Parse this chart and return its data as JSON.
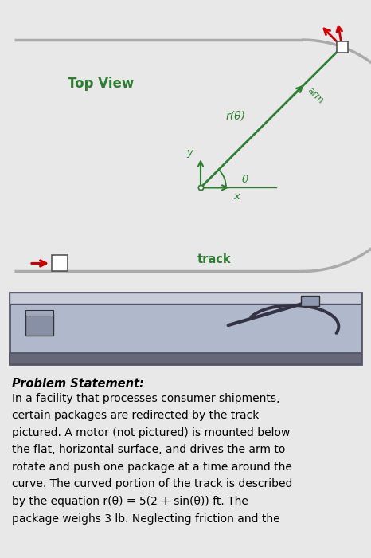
{
  "bg_color": "#e8e8e8",
  "top_panel_bg": "#ffffff",
  "track_color": "#aaaaaa",
  "track_linewidth": 2.5,
  "arm_color": "#2e7d32",
  "arrow_red": "#cc0000",
  "label_color": "#2e7d32",
  "text_color": "#000000",
  "top_view_label": "Top View",
  "track_label": "track",
  "r_label": "r(θ)",
  "arm_label": "arm",
  "x_label": "x",
  "y_label": "y",
  "theta_label": "θ",
  "problem_title": "Problem Statement:",
  "problem_text_lines": [
    "In a facility that processes consumer shipments,",
    "certain packages are redirected by the track",
    "pictured. A motor (not pictured) is mounted below",
    "the flat, horizontal surface, and drives the arm to",
    "rotate and push one package at a time around the",
    "curve. The curved portion of the track is described",
    "by the equation r(θ) = 5(2 + sin(θ)) ft. The",
    "package weighs 3 lb. Neglecting friction and the"
  ],
  "panel3d_face": "#b0b8cc",
  "panel3d_edge": "#555566",
  "panel3d_top": "#c8ccd8",
  "panel3d_bot": "#666877",
  "panel3d_shadow": "#9099aa"
}
